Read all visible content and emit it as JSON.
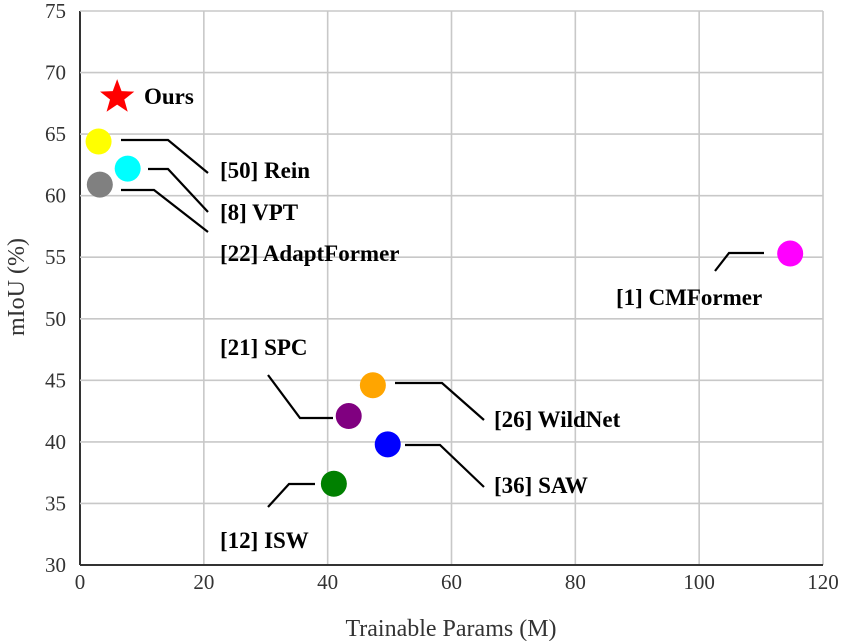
{
  "chart_data": {
    "type": "scatter",
    "xlabel": "Trainable Params (M)",
    "ylabel": "mIoU (%)",
    "xlim": [
      0,
      120
    ],
    "ylim": [
      30,
      75
    ],
    "xticks": [
      0,
      20,
      40,
      60,
      80,
      100,
      120
    ],
    "yticks": [
      30,
      35,
      40,
      45,
      50,
      55,
      60,
      65,
      70,
      75
    ],
    "grid": true,
    "points": [
      {
        "label": "Ours",
        "x": 6.0,
        "y": 68.0,
        "color": "#ff0000",
        "marker": "star"
      },
      {
        "label": "[50] Rein",
        "x": 3.0,
        "y": 64.4,
        "color": "#ffff00",
        "marker": "circle"
      },
      {
        "label": "[8] VPT",
        "x": 7.7,
        "y": 62.2,
        "color": "#00ffff",
        "marker": "circle"
      },
      {
        "label": "[22] AdaptFormer",
        "x": 3.2,
        "y": 60.9,
        "color": "#808080",
        "marker": "circle"
      },
      {
        "label": "[1] CMFormer",
        "x": 114.7,
        "y": 55.3,
        "color": "#ff00ff",
        "marker": "circle"
      },
      {
        "label": "[21] SPC",
        "x": 43.4,
        "y": 42.1,
        "color": "#800080",
        "marker": "circle"
      },
      {
        "label": "[26] WildNet",
        "x": 47.3,
        "y": 44.6,
        "color": "#ffa500",
        "marker": "circle"
      },
      {
        "label": "[36] SAW",
        "x": 49.7,
        "y": 39.8,
        "color": "#0000ff",
        "marker": "circle"
      },
      {
        "label": "[12] ISW",
        "x": 41.0,
        "y": 36.6,
        "color": "#008000",
        "marker": "circle"
      }
    ]
  }
}
